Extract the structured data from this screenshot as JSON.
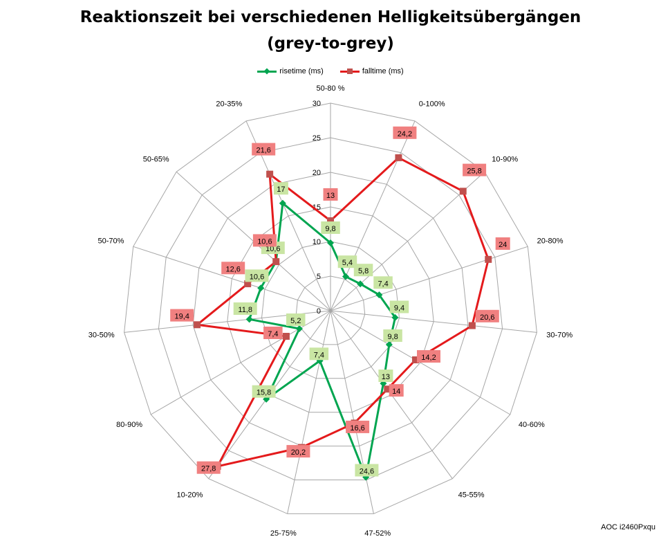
{
  "chart_data": {
    "type": "radar",
    "title": "Reaktionszeit bei verschiedenen Helligkeitsübergängen",
    "subtitle": "(grey-to-grey)",
    "categories": [
      "50-80 %",
      "0-100%",
      "10-90%",
      "20-80%",
      "30-70%",
      "40-60%",
      "45-55%",
      "47-52%",
      "25-75%",
      "10-20%",
      "80-90%",
      "30-50%",
      "50-70%",
      "50-65%",
      "20-35%"
    ],
    "axis": {
      "min": 0,
      "max": 30,
      "step": 5,
      "ticks": [
        "0",
        "5",
        "10",
        "15",
        "20",
        "25",
        "30"
      ]
    },
    "series": [
      {
        "name": "risetime (ms)",
        "color": "#00a550",
        "marker": "diamond",
        "values": [
          9.8,
          5.4,
          5.8,
          7.4,
          9.4,
          9.8,
          13,
          24.6,
          7.4,
          15.8,
          5.2,
          11.8,
          10.6,
          10.6,
          17
        ],
        "labels": [
          "9,8",
          "5,4",
          "5,8",
          "7,4",
          "9,4",
          "9,8",
          "13",
          "24,6",
          "7,4",
          "15,8",
          "5,2",
          "11,8",
          "10,6",
          "10,6",
          "17"
        ]
      },
      {
        "name": "falltime (ms)",
        "color": "#e41a1c",
        "marker": "square",
        "values": [
          13,
          24.2,
          25.8,
          24,
          20.6,
          14.2,
          14,
          16.6,
          20.2,
          27.8,
          7.4,
          19.4,
          12.6,
          10.6,
          21.6
        ],
        "labels": [
          "13",
          "24,2",
          "25,8",
          "24",
          "20,6",
          "14,2",
          "14",
          "16,6",
          "20,2",
          "27,8",
          "7,4",
          "19,4",
          "12,6",
          "10,6",
          "21,6"
        ]
      }
    ],
    "grid": true,
    "legend_position": "top"
  },
  "footer": {
    "watermark": "AOC i2460Pxqu"
  }
}
